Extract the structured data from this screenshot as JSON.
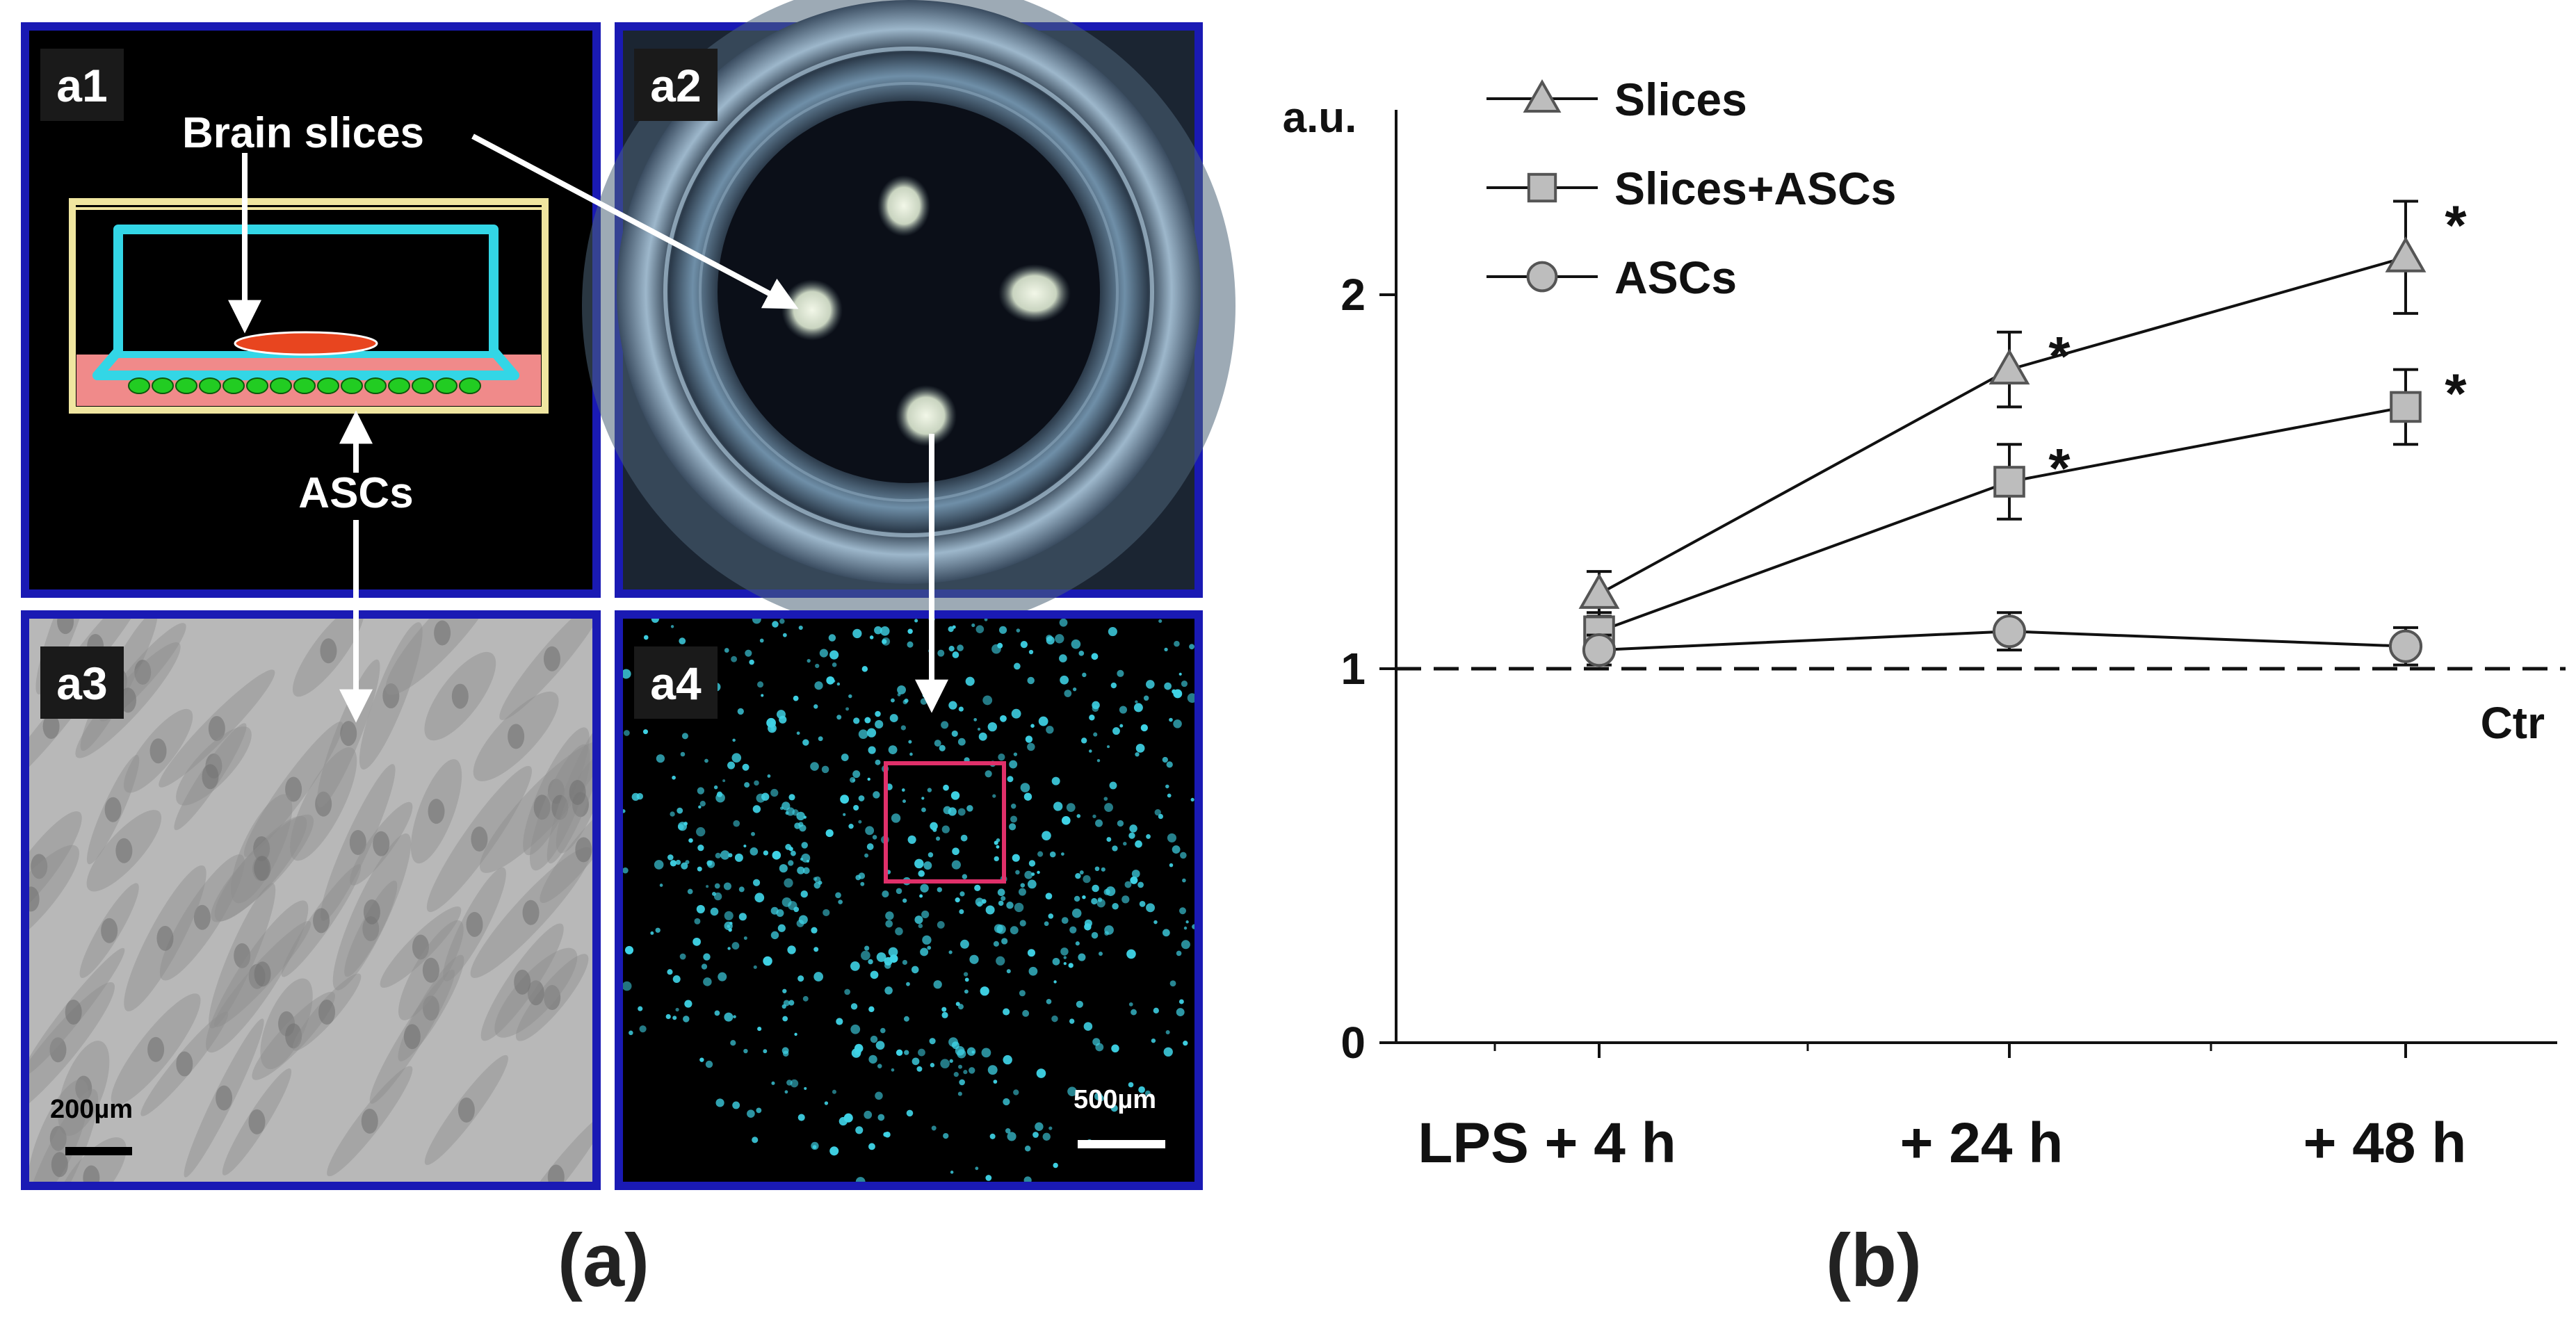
{
  "panel_a": {
    "caption": "(a)",
    "a1": {
      "tag": "a1",
      "label_slices": "Brain slices",
      "label_ascs": "ASCs"
    },
    "a2": {
      "tag": "a2"
    },
    "a3": {
      "tag": "a3",
      "scale_bar": "200µm"
    },
    "a4": {
      "tag": "a4",
      "scale_bar": "500µm"
    }
  },
  "panel_b": {
    "caption": "(b)",
    "ctr_label": "Ctr",
    "star": "*"
  },
  "colors": {
    "panel_border": "#1a1ab4",
    "inset_cyan": "#33d6e6",
    "slice_red": "#e8451f",
    "cells_green": "#22cc22",
    "fluor_cyan": "#3fd3e6",
    "roi_pink": "#e0306a",
    "marker_fill": "#bdbdbd"
  },
  "chart_data": {
    "type": "line",
    "categories": [
      "LPS + 4 h",
      "+ 24 h",
      "+ 48 h"
    ],
    "ylabel": "a.u.",
    "ylim": [
      0,
      2.5
    ],
    "yticks": [
      0,
      1,
      2
    ],
    "reference_line": {
      "y": 1,
      "label": "Ctr",
      "style": "dashed"
    },
    "legend_position": "top-left",
    "series": [
      {
        "name": "Slices",
        "marker": "triangle",
        "values": [
          1.2,
          1.8,
          2.1
        ],
        "error": [
          0.06,
          0.1,
          0.15
        ],
        "significant": [
          false,
          true,
          true
        ]
      },
      {
        "name": "Slices+ASCs",
        "marker": "square",
        "values": [
          1.1,
          1.5,
          1.7
        ],
        "error": [
          0.05,
          0.1,
          0.1
        ],
        "significant": [
          false,
          true,
          true
        ]
      },
      {
        "name": "ASCs",
        "marker": "circle",
        "values": [
          1.05,
          1.1,
          1.06
        ],
        "error": [
          0.04,
          0.05,
          0.05
        ],
        "significant": [
          false,
          false,
          false
        ]
      }
    ]
  }
}
